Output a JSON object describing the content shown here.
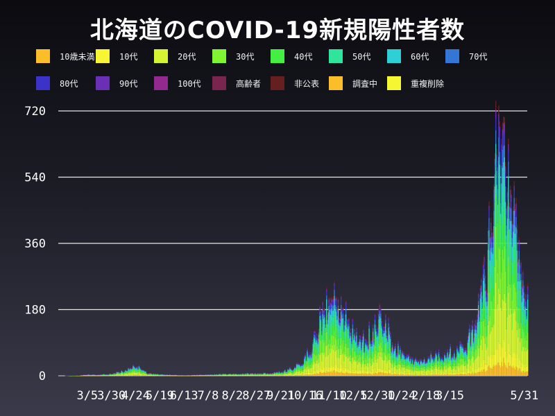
{
  "chart_data": {
    "type": "bar",
    "stacked": true,
    "title": "北海道のCOVID-19新規陽性者数",
    "xlabel": "",
    "ylabel": "",
    "ylim": [
      0,
      720
    ],
    "yticks": [
      "0",
      "180",
      "360",
      "540",
      "720"
    ],
    "ytick_values": [
      0,
      180,
      360,
      540,
      720
    ],
    "xticks": [
      {
        "label": "3/5",
        "day": 30
      },
      {
        "label": "3/30",
        "day": 55
      },
      {
        "label": "4/24",
        "day": 80
      },
      {
        "label": "5/19",
        "day": 105
      },
      {
        "label": "6/13",
        "day": 130
      },
      {
        "label": "7/8",
        "day": 155
      },
      {
        "label": "8/2",
        "day": 180
      },
      {
        "label": "8/27",
        "day": 205
      },
      {
        "label": "9/21",
        "day": 230
      },
      {
        "label": "10/16",
        "day": 255
      },
      {
        "label": "11/10",
        "day": 280
      },
      {
        "label": "12/5",
        "day": 305
      },
      {
        "label": "12/30",
        "day": 330
      },
      {
        "label": "1/24",
        "day": 355
      },
      {
        "label": "2/18",
        "day": 380
      },
      {
        "label": "3/15",
        "day": 405
      },
      {
        "label": "5/31",
        "day": 482
      }
    ],
    "legend_placement": "top",
    "grid": true,
    "series": [
      {
        "name": "10歳未満",
        "color": "#fbbd2a"
      },
      {
        "name": "10代",
        "color": "#f7f633"
      },
      {
        "name": "20代",
        "color": "#d5f533"
      },
      {
        "name": "30代",
        "color": "#80f433"
      },
      {
        "name": "40代",
        "color": "#45ee45"
      },
      {
        "name": "50代",
        "color": "#2fe59e"
      },
      {
        "name": "60代",
        "color": "#2fcfd8"
      },
      {
        "name": "70代",
        "color": "#3476d6"
      },
      {
        "name": "80代",
        "color": "#3b33c7"
      },
      {
        "name": "90代",
        "color": "#6a2fb6"
      },
      {
        "name": "100代",
        "color": "#93298f"
      },
      {
        "name": "高齢者",
        "color": "#7a2550"
      },
      {
        "name": "非公表",
        "color": "#651f1f"
      },
      {
        "name": "調査中",
        "color": "#fbbd2a"
      },
      {
        "name": "重複削除",
        "color": "#f7f633"
      }
    ],
    "total_trend": {
      "description_points_day_total": [
        [
          0,
          0
        ],
        [
          20,
          1
        ],
        [
          30,
          4
        ],
        [
          40,
          3
        ],
        [
          55,
          6
        ],
        [
          70,
          15
        ],
        [
          78,
          30
        ],
        [
          84,
          22
        ],
        [
          92,
          8
        ],
        [
          105,
          4
        ],
        [
          130,
          2
        ],
        [
          150,
          3
        ],
        [
          170,
          5
        ],
        [
          190,
          6
        ],
        [
          205,
          7
        ],
        [
          220,
          8
        ],
        [
          235,
          14
        ],
        [
          250,
          35
        ],
        [
          262,
          80
        ],
        [
          270,
          170
        ],
        [
          278,
          200
        ],
        [
          285,
          215
        ],
        [
          292,
          190
        ],
        [
          300,
          150
        ],
        [
          310,
          110
        ],
        [
          318,
          95
        ],
        [
          325,
          120
        ],
        [
          332,
          175
        ],
        [
          338,
          150
        ],
        [
          345,
          100
        ],
        [
          352,
          70
        ],
        [
          360,
          55
        ],
        [
          370,
          45
        ],
        [
          380,
          50
        ],
        [
          390,
          55
        ],
        [
          400,
          65
        ],
        [
          410,
          70
        ],
        [
          418,
          80
        ],
        [
          425,
          110
        ],
        [
          432,
          160
        ],
        [
          440,
          280
        ],
        [
          446,
          420
        ],
        [
          452,
          600
        ],
        [
          458,
          650
        ],
        [
          462,
          560
        ],
        [
          466,
          500
        ],
        [
          470,
          430
        ],
        [
          474,
          380
        ],
        [
          478,
          300
        ],
        [
          482,
          240
        ]
      ]
    }
  }
}
